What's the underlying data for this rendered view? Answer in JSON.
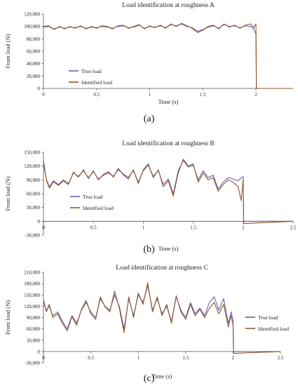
{
  "colors": {
    "true_load": "#6a5fb0",
    "identified_load": "#8a5a2a",
    "axis": "#555555",
    "text": "#222222"
  },
  "chart_data": [
    {
      "type": "line",
      "panel_label": "(a)",
      "title": "Load identification at roughness A",
      "xlabel": "Time (s)",
      "ylabel": "Front load (N)",
      "xlim": [
        0,
        2.35
      ],
      "ylim": [
        0,
        120000
      ],
      "xticks": [
        0,
        0.5,
        1,
        1.5,
        2
      ],
      "xtick_labels": [
        "0",
        "0.5",
        "1",
        "1.5",
        "2"
      ],
      "yticks": [
        0,
        20000,
        40000,
        60000,
        80000,
        100000,
        120000
      ],
      "ytick_labels": [
        "0",
        "20,000",
        "40,000",
        "60,000",
        "80,000",
        "100,000",
        "120,000"
      ],
      "grid": false,
      "legend_position": "lower-left",
      "x": [
        0,
        0.05,
        0.1,
        0.15,
        0.2,
        0.25,
        0.3,
        0.35,
        0.4,
        0.45,
        0.5,
        0.55,
        0.6,
        0.65,
        0.7,
        0.75,
        0.8,
        0.85,
        0.9,
        0.95,
        1.0,
        1.05,
        1.1,
        1.15,
        1.2,
        1.25,
        1.3,
        1.35,
        1.4,
        1.45,
        1.5,
        1.55,
        1.6,
        1.65,
        1.7,
        1.75,
        1.8,
        1.85,
        1.9,
        1.95,
        1.98,
        2.0,
        2.005,
        2.35
      ],
      "series": [
        {
          "name": "True load",
          "color_key": "true_load",
          "values": [
            99000,
            100000,
            96000,
            99000,
            97000,
            99000,
            98000,
            100000,
            97000,
            99000,
            98000,
            100000,
            99000,
            97000,
            100000,
            101000,
            98000,
            99000,
            102000,
            97000,
            100000,
            99000,
            101000,
            98000,
            103000,
            101000,
            104000,
            100000,
            98000,
            92000,
            95000,
            99000,
            101000,
            97000,
            103000,
            100000,
            101000,
            98000,
            101000,
            100000,
            96000,
            88000,
            0,
            0
          ]
        },
        {
          "name": "Identified load",
          "color_key": "identified_load",
          "values": [
            100000,
            101000,
            95000,
            100000,
            96000,
            100000,
            97000,
            101000,
            96000,
            100000,
            97000,
            101000,
            100000,
            96000,
            101000,
            102000,
            97000,
            100000,
            103000,
            96000,
            101000,
            98000,
            102000,
            97000,
            104000,
            100000,
            105000,
            101000,
            97000,
            90000,
            94000,
            100000,
            102000,
            96000,
            104000,
            99000,
            102000,
            97000,
            102000,
            104000,
            98000,
            104000,
            0,
            0
          ]
        }
      ]
    },
    {
      "type": "line",
      "panel_label": "(b)",
      "title": "Load identification at roughness B",
      "xlabel": "Time (s)",
      "ylabel": "Front load (N)",
      "xlim": [
        0,
        2.5
      ],
      "ylim": [
        -30000,
        150000
      ],
      "xticks": [
        0,
        0.5,
        1,
        1.5,
        2,
        2.5
      ],
      "xtick_labels": [
        "0",
        "0.5",
        "1",
        "1.5",
        "2",
        "2.5"
      ],
      "yticks": [
        -30000,
        0,
        30000,
        60000,
        90000,
        120000,
        150000
      ],
      "ytick_labels": [
        "-30,000",
        "0",
        "30,000",
        "60,000",
        "90,000",
        "120,000",
        "150,000"
      ],
      "grid": false,
      "legend_position": "lower-left",
      "x": [
        0,
        0.03,
        0.06,
        0.1,
        0.15,
        0.2,
        0.25,
        0.3,
        0.35,
        0.4,
        0.45,
        0.5,
        0.55,
        0.6,
        0.65,
        0.7,
        0.75,
        0.8,
        0.85,
        0.9,
        0.95,
        1.0,
        1.05,
        1.1,
        1.15,
        1.2,
        1.25,
        1.3,
        1.35,
        1.4,
        1.45,
        1.5,
        1.55,
        1.6,
        1.65,
        1.7,
        1.75,
        1.8,
        1.85,
        1.9,
        1.95,
        1.98,
        2.0,
        2.005,
        2.5
      ],
      "series": [
        {
          "name": "True load",
          "color_key": "true_load",
          "values": [
            125000,
            90000,
            75000,
            88000,
            80000,
            90000,
            82000,
            105000,
            98000,
            110000,
            95000,
            108000,
            92000,
            100000,
            105000,
            98000,
            112000,
            103000,
            95000,
            110000,
            85000,
            110000,
            122000,
            98000,
            110000,
            80000,
            92000,
            60000,
            110000,
            132000,
            118000,
            122000,
            90000,
            110000,
            95000,
            100000,
            70000,
            85000,
            95000,
            92000,
            88000,
            95000,
            97000,
            0,
            0
          ]
        },
        {
          "name": "Identified load",
          "color_key": "identified_load",
          "values": [
            132000,
            88000,
            72000,
            86000,
            78000,
            88000,
            80000,
            107000,
            96000,
            112000,
            93000,
            110000,
            90000,
            102000,
            108000,
            96000,
            115000,
            101000,
            92000,
            112000,
            82000,
            112000,
            125000,
            95000,
            112000,
            75000,
            88000,
            55000,
            105000,
            135000,
            120000,
            125000,
            85000,
            105000,
            90000,
            95000,
            65000,
            80000,
            90000,
            85000,
            75000,
            45000,
            90000,
            -5000,
            0
          ]
        }
      ]
    },
    {
      "type": "line",
      "panel_label": "(c)",
      "title": "Load identification at roughness C",
      "xlabel": "Time (s)",
      "ylabel": "Front load (N)",
      "xlim": [
        0,
        2.5
      ],
      "ylim": [
        -30000,
        210000
      ],
      "xticks": [
        0,
        0.5,
        1,
        1.5,
        2,
        2.5
      ],
      "xtick_labels": [
        "0",
        "0.5",
        "1",
        "1.5",
        "2",
        "2.5"
      ],
      "yticks": [
        -30000,
        0,
        30000,
        60000,
        90000,
        120000,
        150000,
        180000,
        210000
      ],
      "ytick_labels": [
        "-30,000",
        "0",
        "30,000",
        "60,000",
        "90,000",
        "120,000",
        "150,000",
        "180,000",
        "210,000"
      ],
      "grid": false,
      "legend_position": "right",
      "x": [
        0,
        0.03,
        0.06,
        0.1,
        0.15,
        0.2,
        0.25,
        0.3,
        0.35,
        0.4,
        0.45,
        0.5,
        0.55,
        0.6,
        0.65,
        0.7,
        0.75,
        0.8,
        0.85,
        0.9,
        0.95,
        1.0,
        1.05,
        1.1,
        1.15,
        1.2,
        1.25,
        1.3,
        1.35,
        1.4,
        1.45,
        1.5,
        1.55,
        1.6,
        1.65,
        1.7,
        1.75,
        1.8,
        1.85,
        1.9,
        1.95,
        1.98,
        2.0,
        2.005,
        2.5
      ],
      "series": [
        {
          "name": "True load",
          "color_key": "true_load",
          "values": [
            130000,
            110000,
            120000,
            95000,
            105000,
            80000,
            60000,
            95000,
            75000,
            110000,
            130000,
            105000,
            90000,
            140000,
            120000,
            110000,
            150000,
            120000,
            60000,
            140000,
            95000,
            150000,
            130000,
            175000,
            110000,
            140000,
            100000,
            120000,
            80000,
            145000,
            110000,
            90000,
            130000,
            100000,
            115000,
            95000,
            130000,
            145000,
            110000,
            140000,
            75000,
            105000,
            80000,
            0,
            0
          ]
        },
        {
          "name": "Identified load",
          "color_key": "identified_load",
          "values": [
            138000,
            105000,
            125000,
            90000,
            100000,
            75000,
            55000,
            92000,
            70000,
            112000,
            135000,
            100000,
            85000,
            145000,
            118000,
            105000,
            160000,
            115000,
            50000,
            145000,
            90000,
            155000,
            125000,
            182000,
            105000,
            145000,
            95000,
            125000,
            75000,
            148000,
            105000,
            85000,
            125000,
            95000,
            112000,
            90000,
            115000,
            130000,
            100000,
            125000,
            65000,
            95000,
            70000,
            -5000,
            0
          ]
        }
      ]
    }
  ]
}
